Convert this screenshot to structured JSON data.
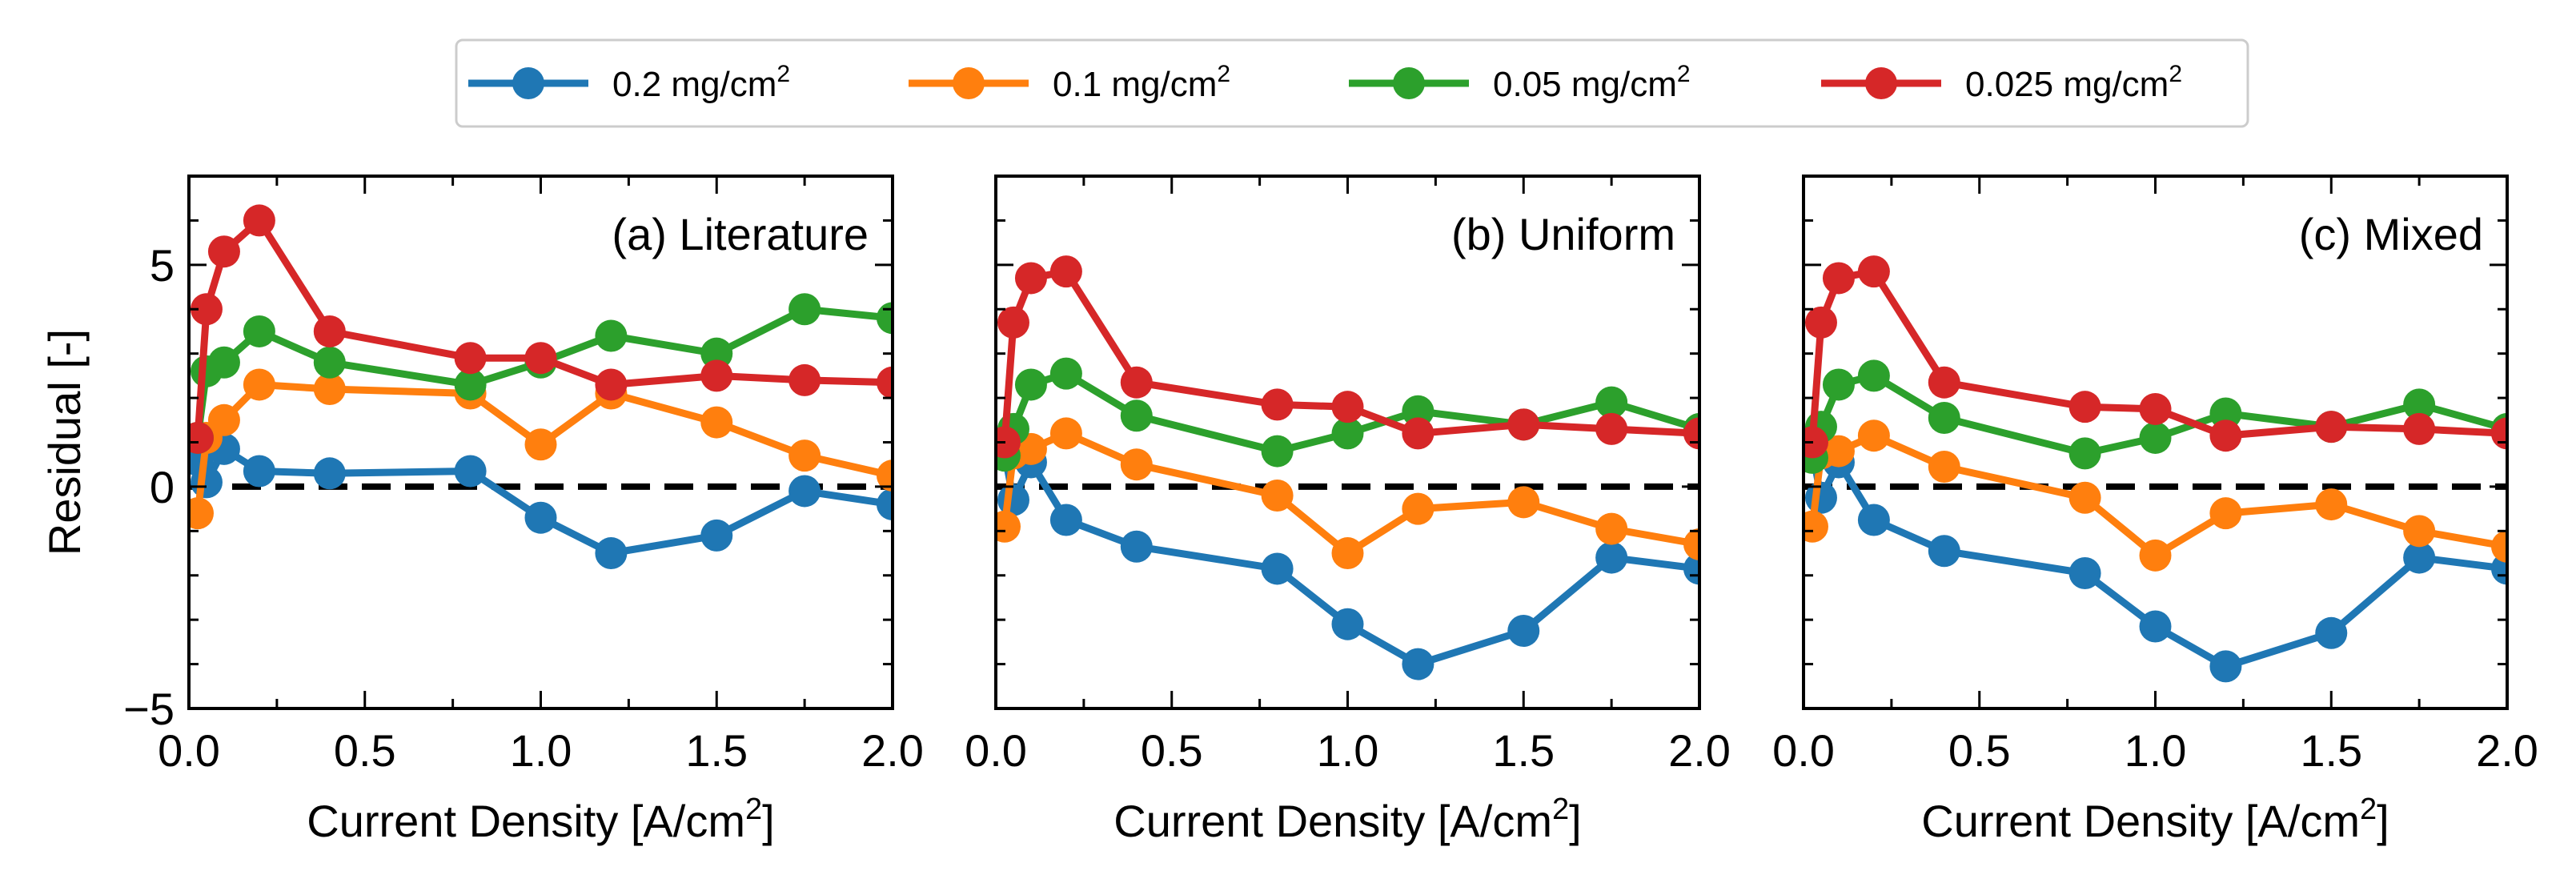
{
  "legend": {
    "entries": [
      {
        "label": "0.2 mg/cm",
        "sup": "2",
        "color": "#1f77b4"
      },
      {
        "label": "0.1 mg/cm",
        "sup": "2",
        "color": "#ff7f0e"
      },
      {
        "label": "0.05 mg/cm",
        "sup": "2",
        "color": "#2ca02c"
      },
      {
        "label": "0.025 mg/cm",
        "sup": "2",
        "color": "#d62728"
      }
    ]
  },
  "chart_data": [
    {
      "type": "line",
      "title": "(a) Literature",
      "xlabel": "Current Density [A/cm",
      "xlabel_sup": "2",
      "xlabel_end": "]",
      "ylabel": "Residual [-]",
      "xlim": [
        0.0,
        2.0
      ],
      "ylim": [
        -5,
        7
      ],
      "xticks": [
        "0.0",
        "0.5",
        "1.0",
        "1.5",
        "2.0"
      ],
      "yticks": [
        "−5",
        "0",
        "5"
      ],
      "x": [
        0.025,
        0.05,
        0.1,
        0.2,
        0.4,
        0.8,
        1.0,
        1.2,
        1.5,
        1.75,
        2.0
      ],
      "reference_line": 0,
      "series": [
        {
          "name": "0.2 mg/cm2",
          "color": "#1f77b4",
          "values": [
            0.6,
            0.1,
            0.85,
            0.35,
            0.3,
            0.35,
            -0.7,
            -1.5,
            -1.1,
            -0.1,
            -0.4
          ]
        },
        {
          "name": "0.1 mg/cm2",
          "color": "#ff7f0e",
          "values": [
            -0.6,
            1.1,
            1.5,
            2.3,
            2.2,
            2.1,
            0.95,
            2.1,
            1.45,
            0.7,
            0.25
          ]
        },
        {
          "name": "0.05 mg/cm2",
          "color": "#2ca02c",
          "values": [
            1.1,
            2.6,
            2.8,
            3.5,
            2.8,
            2.3,
            2.8,
            3.4,
            3.0,
            4.0,
            3.8
          ]
        },
        {
          "name": "0.025 mg/cm2",
          "color": "#d62728",
          "values": [
            1.1,
            4.0,
            5.3,
            6.0,
            3.5,
            2.9,
            2.9,
            2.3,
            2.5,
            2.4,
            2.35
          ]
        }
      ]
    },
    {
      "type": "line",
      "title": "(b) Uniform",
      "xlabel": "Current Density [A/cm",
      "xlabel_sup": "2",
      "xlabel_end": "]",
      "ylabel": "",
      "xlim": [
        0.0,
        2.0
      ],
      "ylim": [
        -5,
        7
      ],
      "xticks": [
        "0.0",
        "0.5",
        "1.0",
        "1.5",
        "2.0"
      ],
      "yticks": [],
      "x": [
        0.025,
        0.05,
        0.1,
        0.2,
        0.4,
        0.8,
        1.0,
        1.2,
        1.5,
        1.75,
        2.0
      ],
      "reference_line": 0,
      "series": [
        {
          "name": "0.2 mg/cm2",
          "color": "#1f77b4",
          "values": [
            0.75,
            -0.3,
            0.55,
            -0.75,
            -1.35,
            -1.85,
            -3.1,
            -4.0,
            -3.25,
            -1.6,
            -1.85
          ]
        },
        {
          "name": "0.1 mg/cm2",
          "color": "#ff7f0e",
          "values": [
            -0.9,
            0.75,
            0.85,
            1.2,
            0.5,
            -0.2,
            -1.5,
            -0.5,
            -0.35,
            -0.95,
            -1.3
          ]
        },
        {
          "name": "0.05 mg/cm2",
          "color": "#2ca02c",
          "values": [
            0.7,
            1.3,
            2.3,
            2.55,
            1.6,
            0.8,
            1.2,
            1.7,
            1.4,
            1.9,
            1.3
          ]
        },
        {
          "name": "0.025 mg/cm2",
          "color": "#d62728",
          "values": [
            1.0,
            3.7,
            4.7,
            4.85,
            2.35,
            1.85,
            1.8,
            1.2,
            1.4,
            1.3,
            1.2
          ]
        }
      ]
    },
    {
      "type": "line",
      "title": "(c) Mixed",
      "xlabel": "Current Density [A/cm",
      "xlabel_sup": "2",
      "xlabel_end": "]",
      "ylabel": "",
      "xlim": [
        0.0,
        2.0
      ],
      "ylim": [
        -5,
        7
      ],
      "xticks": [
        "0.0",
        "0.5",
        "1.0",
        "1.5",
        "2.0"
      ],
      "yticks": [],
      "x": [
        0.025,
        0.05,
        0.1,
        0.2,
        0.4,
        0.8,
        1.0,
        1.2,
        1.5,
        1.75,
        2.0
      ],
      "reference_line": 0,
      "series": [
        {
          "name": "0.2 mg/cm2",
          "color": "#1f77b4",
          "values": [
            0.8,
            -0.25,
            0.55,
            -0.75,
            -1.45,
            -1.95,
            -3.15,
            -4.05,
            -3.3,
            -1.6,
            -1.85
          ]
        },
        {
          "name": "0.1 mg/cm2",
          "color": "#ff7f0e",
          "values": [
            -0.9,
            0.75,
            0.8,
            1.15,
            0.45,
            -0.25,
            -1.55,
            -0.6,
            -0.4,
            -1.0,
            -1.35
          ]
        },
        {
          "name": "0.05 mg/cm2",
          "color": "#2ca02c",
          "values": [
            0.65,
            1.35,
            2.3,
            2.5,
            1.55,
            0.75,
            1.1,
            1.65,
            1.35,
            1.85,
            1.3
          ]
        },
        {
          "name": "0.025 mg/cm2",
          "color": "#d62728",
          "values": [
            1.0,
            3.7,
            4.7,
            4.85,
            2.35,
            1.8,
            1.75,
            1.15,
            1.35,
            1.3,
            1.2
          ]
        }
      ]
    }
  ]
}
